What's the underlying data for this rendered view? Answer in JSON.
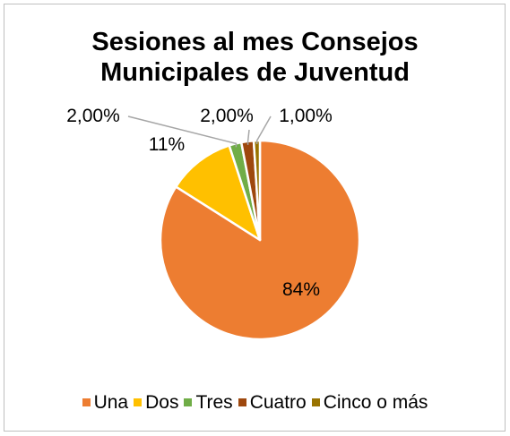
{
  "chart_data": {
    "type": "pie",
    "title_lines": [
      "Sesiones al mes Consejos",
      "Municipales de Juventud"
    ],
    "slices": [
      {
        "name": "Una",
        "value": 84,
        "label": "84%",
        "color": "#ED7D31"
      },
      {
        "name": "Dos",
        "value": 11,
        "label": "11%",
        "color": "#FFC000"
      },
      {
        "name": "Tres",
        "value": 2,
        "label": "2,00%",
        "color": "#70AD47"
      },
      {
        "name": "Cuatro",
        "value": 2,
        "label": "2,00%",
        "color": "#9E480E"
      },
      {
        "name": "Cinco o más",
        "value": 1,
        "label": "1,00%",
        "color": "#997300"
      }
    ],
    "legend_position": "bottom",
    "leader_line_color": "#A6A6A6"
  }
}
